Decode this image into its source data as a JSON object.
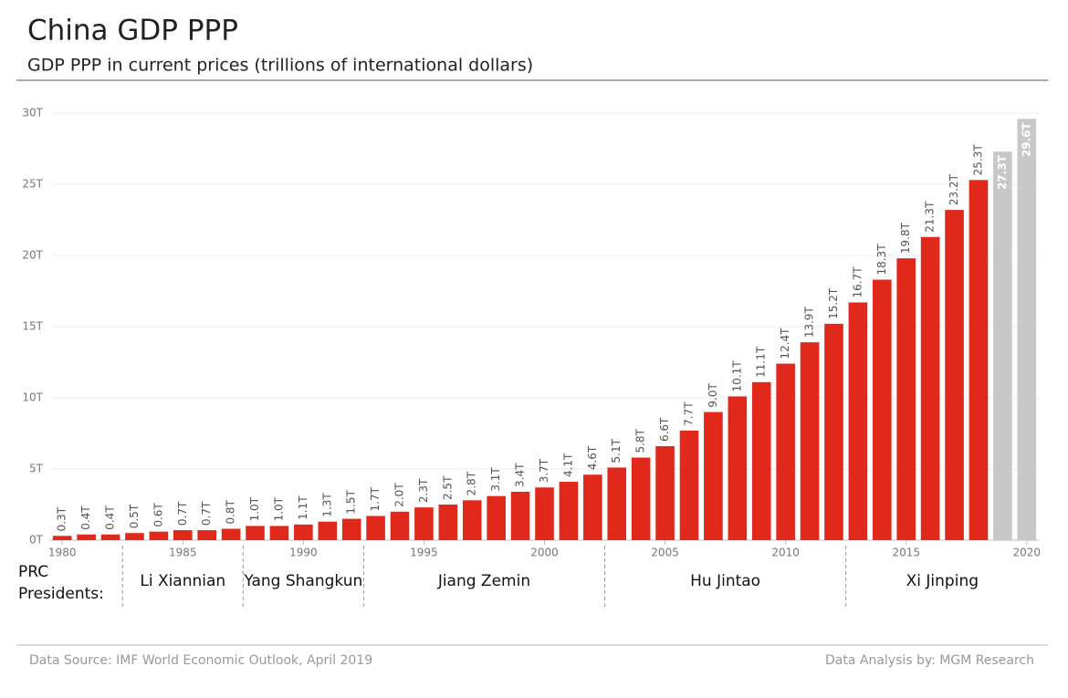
{
  "chart_data": {
    "type": "bar",
    "title": "China GDP PPP",
    "subtitle": "GDP PPP in current prices (trillions of international dollars)",
    "x": [
      1980,
      1981,
      1982,
      1983,
      1984,
      1985,
      1986,
      1987,
      1988,
      1989,
      1990,
      1991,
      1992,
      1993,
      1994,
      1995,
      1996,
      1997,
      1998,
      1999,
      2000,
      2001,
      2002,
      2003,
      2004,
      2005,
      2006,
      2007,
      2008,
      2009,
      2010,
      2011,
      2012,
      2013,
      2014,
      2015,
      2016,
      2017,
      2018,
      2019,
      2020
    ],
    "values": [
      0.3,
      0.4,
      0.4,
      0.5,
      0.6,
      0.7,
      0.7,
      0.8,
      1.0,
      1.0,
      1.1,
      1.3,
      1.5,
      1.7,
      2.0,
      2.3,
      2.5,
      2.8,
      3.1,
      3.4,
      3.7,
      4.1,
      4.6,
      5.1,
      5.8,
      6.6,
      7.7,
      9.0,
      10.1,
      11.1,
      12.4,
      13.9,
      15.2,
      16.7,
      18.3,
      19.8,
      21.3,
      23.2,
      25.3,
      27.3,
      29.6
    ],
    "value_labels": [
      "0.3T",
      "0.4T",
      "0.4T",
      "0.5T",
      "0.6T",
      "0.7T",
      "0.7T",
      "0.8T",
      "1.0T",
      "1.0T",
      "1.1T",
      "1.3T",
      "1.5T",
      "1.7T",
      "2.0T",
      "2.3T",
      "2.5T",
      "2.8T",
      "3.1T",
      "3.4T",
      "3.7T",
      "4.1T",
      "4.6T",
      "5.1T",
      "5.8T",
      "6.6T",
      "7.7T",
      "9.0T",
      "10.1T",
      "11.1T",
      "12.4T",
      "13.9T",
      "15.2T",
      "16.7T",
      "18.3T",
      "19.8T",
      "21.3T",
      "23.2T",
      "25.3T",
      "27.3T",
      "29.6T"
    ],
    "color": "#e0291b",
    "colors": [
      "#e0291b",
      "#e0291b",
      "#e0291b",
      "#e0291b",
      "#e0291b",
      "#e0291b",
      "#e0291b",
      "#e0291b",
      "#e0291b",
      "#e0291b",
      "#e0291b",
      "#e0291b",
      "#e0291b",
      "#e0291b",
      "#e0291b",
      "#e0291b",
      "#e0291b",
      "#e0291b",
      "#e0291b",
      "#e0291b",
      "#e0291b",
      "#e0291b",
      "#e0291b",
      "#e0291b",
      "#e0291b",
      "#e0291b",
      "#e0291b",
      "#e0291b",
      "#e0291b",
      "#e0291b",
      "#e0291b",
      "#e0291b",
      "#e0291b",
      "#e0291b",
      "#e0291b",
      "#e0291b",
      "#e0291b",
      "#e0291b",
      "#e0291b",
      "#c8c8c8",
      "#c8c8c8"
    ],
    "xlim": [
      1979.5,
      2020.5
    ],
    "xticks": [
      1980,
      1985,
      1990,
      1995,
      2000,
      2005,
      2010,
      2015,
      2020
    ],
    "ylim": [
      0,
      30
    ],
    "yticks": [
      {
        "value": 0,
        "label": "0T"
      },
      {
        "value": 5,
        "label": "5T"
      },
      {
        "value": 10,
        "label": "10T"
      },
      {
        "value": 15,
        "label": "15T"
      },
      {
        "value": 20,
        "label": "20T"
      },
      {
        "value": 25,
        "label": "25T"
      },
      {
        "value": 30,
        "label": "30T"
      }
    ],
    "grid": true,
    "presidents_label": [
      "PRC",
      "Presidents:"
    ],
    "presidents": [
      "Li Xiannian",
      "Yang Shangkun",
      "Jiang Zemin",
      "Hu Jintao",
      "Xi Jinping"
    ],
    "president_boundaries": [
      1982.5,
      1987.5,
      1992.5,
      2002.5,
      2012.5
    ],
    "source": "Data Source: IMF World Economic Outlook, April 2019",
    "credit": "Data Analysis by: MGM Research"
  }
}
